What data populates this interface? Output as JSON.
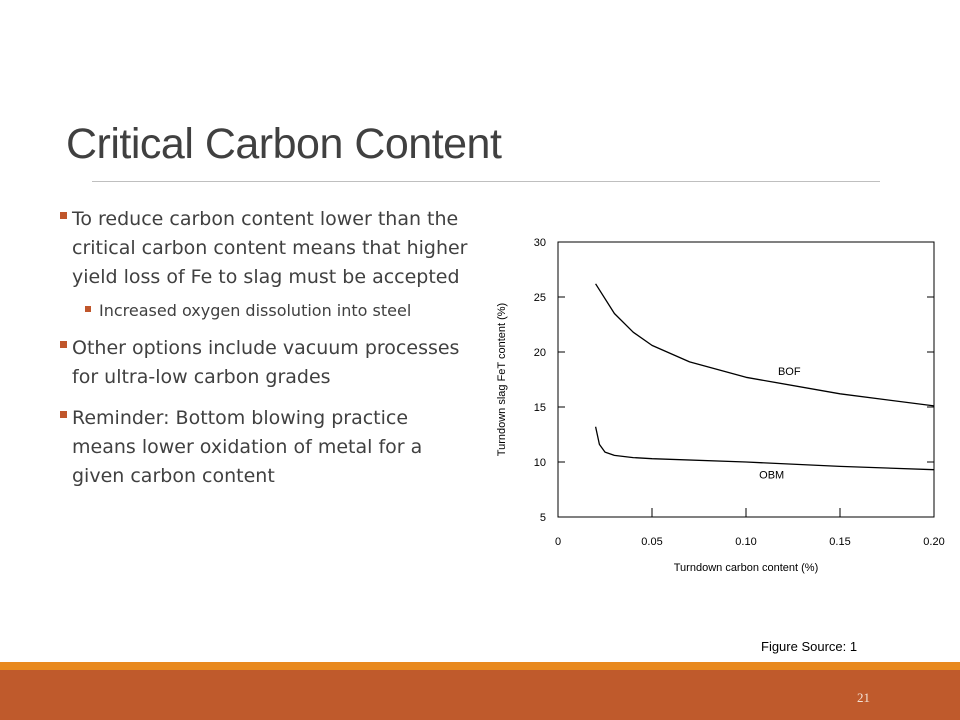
{
  "slide": {
    "title": "Critical Carbon Content",
    "page_number": "21",
    "figure_source": "Figure Source: 1"
  },
  "bullets": [
    {
      "text": "To reduce carbon content lower than the critical carbon content means that higher yield loss of Fe to slag must be accepted",
      "sub": [
        "Increased oxygen dissolution into steel"
      ]
    },
    {
      "text": "Other options include vacuum processes for ultra-low carbon grades",
      "sub": []
    },
    {
      "text": "Reminder: Bottom blowing practice means lower oxidation of metal for a given carbon content",
      "sub": []
    }
  ],
  "colors": {
    "accent": "#c0562b",
    "band": "#bf5a2c",
    "band_top": "#e8891f",
    "title": "#404040"
  },
  "chart_data": {
    "type": "line",
    "title": "",
    "xlabel": "Turndown carbon content (%)",
    "ylabel": "Turndown slag FeT content (%)",
    "xlim": [
      0,
      0.2
    ],
    "ylim": [
      5,
      30
    ],
    "x_ticks": [
      "0",
      "0.05",
      "0.10",
      "0.15",
      "0.20"
    ],
    "y_ticks": [
      "5",
      "10",
      "15",
      "20",
      "25",
      "30"
    ],
    "grid": false,
    "series": [
      {
        "name": "BOF",
        "x": [
          0.02,
          0.03,
          0.04,
          0.05,
          0.07,
          0.1,
          0.15,
          0.2
        ],
        "y": [
          26.2,
          23.5,
          21.8,
          20.6,
          19.1,
          17.7,
          16.2,
          15.1
        ]
      },
      {
        "name": "OBM",
        "x": [
          0.02,
          0.022,
          0.025,
          0.03,
          0.04,
          0.05,
          0.1,
          0.15,
          0.2
        ],
        "y": [
          13.2,
          11.6,
          10.9,
          10.6,
          10.4,
          10.3,
          10.0,
          9.6,
          9.3
        ]
      }
    ]
  }
}
